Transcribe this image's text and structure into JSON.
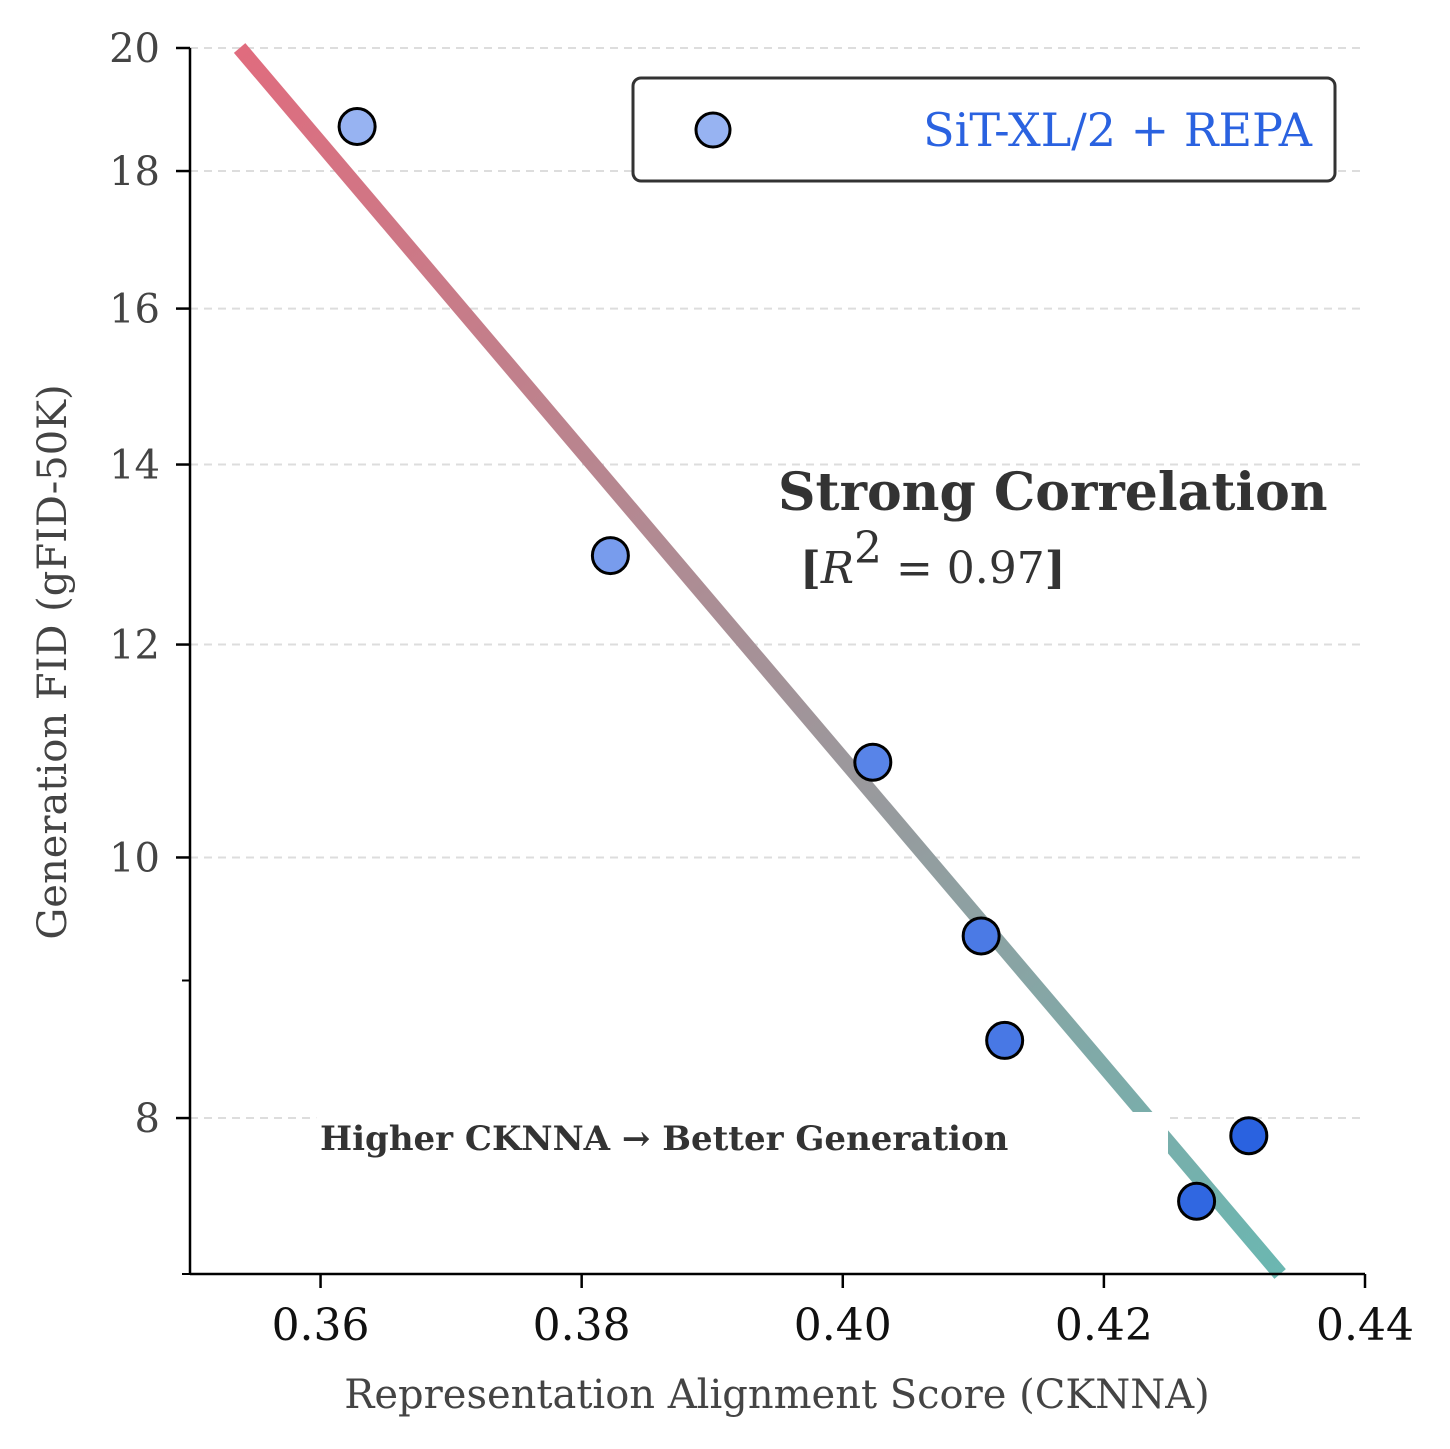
{
  "chart_data": {
    "type": "scatter",
    "x_label": "Representation Alignment Score (CKNNA)",
    "y_label": "Generation FID (gFID-50K)",
    "y_scale": "log",
    "xlim": [
      0.35,
      0.44
    ],
    "ylim": [
      7.0,
      20.0
    ],
    "x_ticks": [
      {
        "value": 0.36,
        "label": "0.36"
      },
      {
        "value": 0.38,
        "label": "0.38"
      },
      {
        "value": 0.4,
        "label": "0.40"
      },
      {
        "value": 0.42,
        "label": "0.42"
      },
      {
        "value": 0.44,
        "label": "0.44"
      }
    ],
    "y_ticks": [
      {
        "value": 20,
        "label": "20"
      },
      {
        "value": 18,
        "label": "18"
      },
      {
        "value": 16,
        "label": "16"
      },
      {
        "value": 14,
        "label": "14"
      },
      {
        "value": 12,
        "label": "12"
      },
      {
        "value": 10,
        "label": "10"
      },
      {
        "value": 8,
        "label": "8"
      }
    ],
    "y_minor_ticks": [
      9,
      7
    ],
    "grid": "horizontal dashed at major y ticks",
    "series": [
      {
        "name": "SiT-XL/2 + REPA",
        "points": [
          {
            "x": 0.3628,
            "y": 18.7
          },
          {
            "x": 0.3822,
            "y": 12.95
          },
          {
            "x": 0.4023,
            "y": 10.85
          },
          {
            "x": 0.4106,
            "y": 9.35
          },
          {
            "x": 0.4124,
            "y": 8.55
          },
          {
            "x": 0.4271,
            "y": 7.45
          },
          {
            "x": 0.4311,
            "y": 7.88
          }
        ]
      }
    ],
    "fit_line": {
      "x_start": 0.3538,
      "y_start": 20.0,
      "x_end": 0.4335,
      "y_end": 7.0,
      "color_start": "#e06c7e",
      "color_end": "#6bb7b1"
    },
    "legend": {
      "position": "top-right",
      "label": "SiT-XL/2 + REPA",
      "label_color": "#2a62e0"
    },
    "annotations": {
      "title": "Strong Correlation",
      "r2_prefix": "[",
      "r2_R": "R",
      "r2_exp": "2",
      "r2_rest": " = 0.97",
      "r2_suffix": "]",
      "note": "Higher CKNNA → Better Generation"
    },
    "colors": {
      "point_light": "#97b3f2",
      "point_dark": "#2a62e0",
      "point_edge": "#000000",
      "grid": "#dddddd",
      "axis": "#000000"
    }
  }
}
